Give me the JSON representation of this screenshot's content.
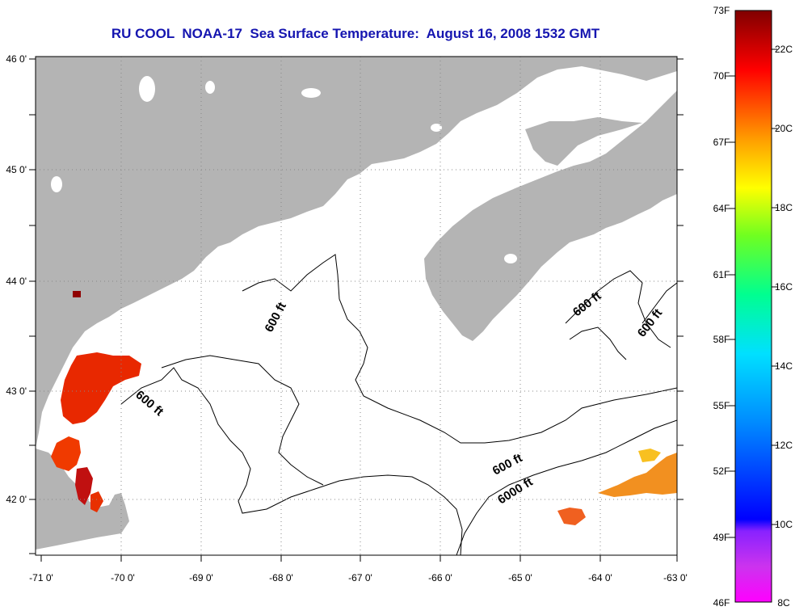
{
  "title": "RU COOL  NOAA-17  Sea Surface Temperature:  August 16, 2008 1532 GMT",
  "map": {
    "lon_ticks": [
      "-71 0'",
      "-70 0'",
      "-69 0'",
      "-68 0'",
      "-67 0'",
      "-66 0'",
      "-65 0'",
      "-64 0'",
      "-63 0'"
    ],
    "lat_ticks": [
      "46 0'",
      "45 0'",
      "44 0'",
      "43 0'",
      "42 0'"
    ],
    "lon_range": [
      -71,
      -63
    ],
    "lat_range": [
      41.5,
      46
    ],
    "land_color": "#b4b4b4",
    "water_color": "#ffffff",
    "contour_labels": [
      "600 ft",
      "600 ft",
      "600 ft",
      "600 ft",
      "600 ft",
      "6000 ft"
    ]
  },
  "colorbar": {
    "fahrenheit_labels": [
      "73F",
      "70F",
      "67F",
      "64F",
      "61F",
      "58F",
      "55F",
      "52F",
      "49F",
      "46F"
    ],
    "celsius_labels": [
      "22C",
      "20C",
      "18C",
      "16C",
      "14C",
      "12C",
      "10C",
      "8C"
    ],
    "range_f": [
      46,
      73
    ],
    "range_c": [
      8,
      23
    ]
  }
}
